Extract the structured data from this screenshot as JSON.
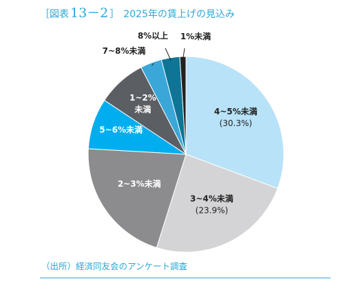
{
  "figure": {
    "open_bracket": "［",
    "label": "図表",
    "number": "13－2",
    "close_bracket": "］",
    "title": "2025年の賃上げの見込み"
  },
  "colors": {
    "accent": "#2aa7d6"
  },
  "chart_data": {
    "type": "pie",
    "start": "12 o'clock, clockwise",
    "slices": [
      {
        "label": "4~5%未満",
        "value": 30.3,
        "value_label": "(30.3%)",
        "color": "#b8e2f8",
        "text_color": "#222222",
        "label_position": "inside"
      },
      {
        "label": "3~4%未満",
        "value": 23.9,
        "value_label": "(23.9%)",
        "color": "#d4d4d6",
        "text_color": "#222222",
        "label_position": "inside"
      },
      {
        "label": "2~3%未満",
        "value": 20.8,
        "value_label": "",
        "color": "#8c8c8e",
        "text_color": "#ffffff",
        "label_position": "inside"
      },
      {
        "label": "5~6%未満",
        "value": 8.3,
        "value_label": "",
        "color": "#00aeef",
        "text_color": "#ffffff",
        "label_position": "inside"
      },
      {
        "label": "1~2%\n未満",
        "value": 8.0,
        "value_label": "",
        "color": "#5b5e63",
        "text_color": "#ffffff",
        "label_position": "inside"
      },
      {
        "label": "7~8%未満",
        "value": 3.5,
        "value_label": "",
        "color": "#3aa7d8",
        "text_color": "#222222",
        "label_position": "outside"
      },
      {
        "label": "8%以上",
        "value": 3.0,
        "value_label": "",
        "color": "#0e7597",
        "text_color": "#222222",
        "label_position": "outside"
      },
      {
        "label": "1%未満",
        "value": 1.0,
        "value_label": "",
        "color": "#222222",
        "text_color": "#222222",
        "label_position": "outside"
      }
    ]
  },
  "source": {
    "text": "（出所）経済同友会のアンケート調査"
  }
}
